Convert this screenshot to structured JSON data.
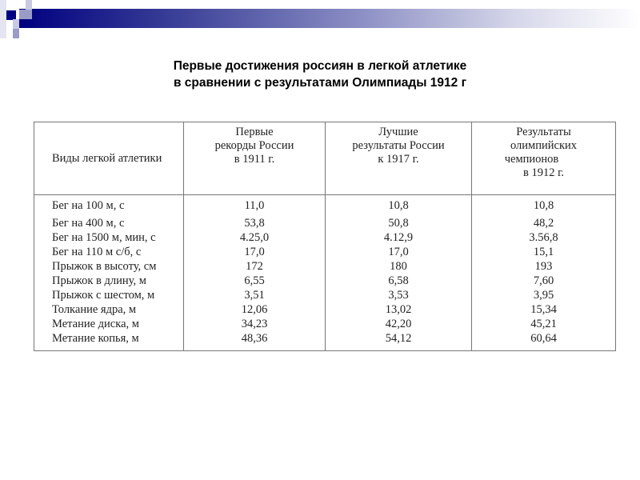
{
  "slide": {
    "title_lines": [
      "Первые достижения россиян в легкой атлетике",
      "в сравнении с результатами Олимпиады 1912 г"
    ],
    "accent_color": "#000080"
  },
  "table": {
    "headers": [
      [
        "Виды легкой атлетики"
      ],
      [
        "Первые",
        "рекорды России",
        "в 1911 г."
      ],
      [
        "Лучшие",
        "результаты России",
        "к 1917 г."
      ],
      [
        "Результаты",
        "олимпийских",
        "чемпионов",
        "в 1912 г."
      ]
    ],
    "rows": [
      [
        "Бег на 100 м, с",
        "11,0",
        "10,8",
        "10,8"
      ],
      [
        "Бег на 400 м, с",
        "53,8",
        "50,8",
        "48,2"
      ],
      [
        "Бег на 1500 м, мин, с",
        "4.25,0",
        "4.12,9",
        "3.56,8"
      ],
      [
        "Бег на 110 м с/б, с",
        "17,0",
        "17,0",
        "15,1"
      ],
      [
        "Прыжок в высоту, см",
        "172",
        "180",
        "193"
      ],
      [
        "Прыжок в длину, м",
        "6,55",
        "6,58",
        "7,60"
      ],
      [
        "Прыжок с шестом, м",
        "3,51",
        "3,53",
        "3,95"
      ],
      [
        "Толкание ядра, м",
        "12,06",
        "13,02",
        "15,34"
      ],
      [
        "Метание диска, м",
        "34,23",
        "42,20",
        "45,21"
      ],
      [
        "Метание копья, м",
        "48,36",
        "54,12",
        "60,64"
      ]
    ]
  }
}
